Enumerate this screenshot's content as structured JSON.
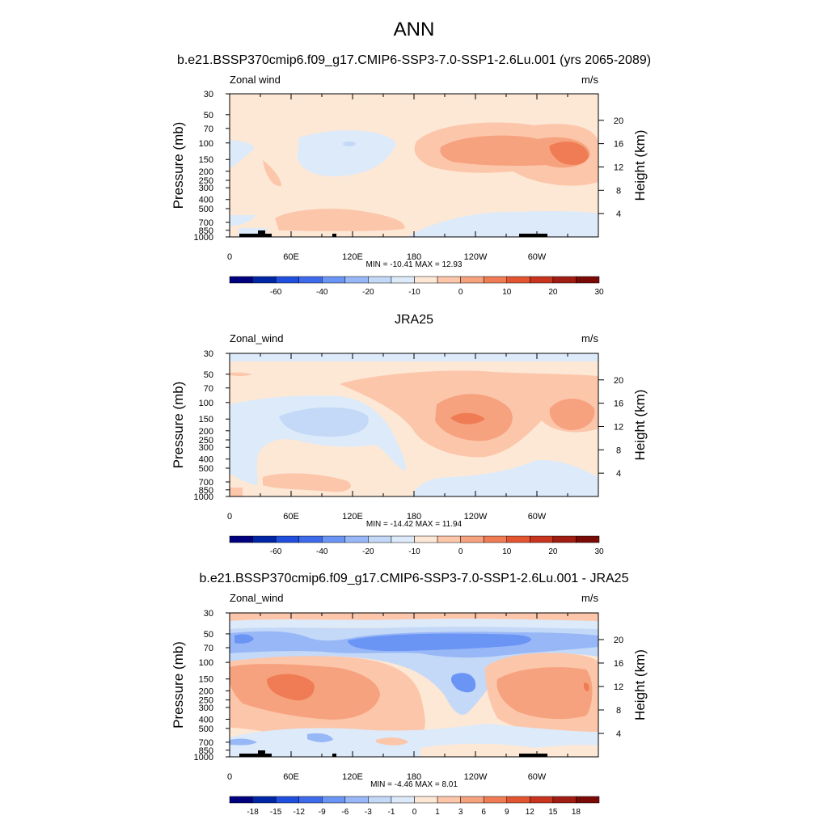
{
  "figure": {
    "title": "ANN",
    "subtitle": "b.e21.BSSP370cmip6.f09_g17.CMIP6-SSP3-7.0-SSP1-2.6Lu.001 (yrs 2065-2089)"
  },
  "chart_data": [
    {
      "type": "heatmap",
      "panel_title": "",
      "left_label": "Zonal wind",
      "right_label": "m/s",
      "xlabel": "",
      "ylabel": "Pressure (mb)",
      "ylabel_right": "Height (km)",
      "x_ticks": [
        "0",
        "60E",
        "120E",
        "180",
        "120W",
        "60W"
      ],
      "y_ticks": [
        "30",
        "50",
        "70",
        "100",
        "150",
        "200",
        "250",
        "300",
        "400",
        "500",
        "700",
        "850",
        "1000"
      ],
      "right_ticks": [
        "20",
        "16",
        "12",
        "8",
        "4"
      ],
      "stats": "MIN = -10.41  MAX =  12.93",
      "min": -10.41,
      "max": 12.93,
      "colorbar_labels": [
        "-60",
        "-40",
        "-20",
        "-10",
        "0",
        "10",
        "20",
        "30"
      ]
    },
    {
      "type": "heatmap",
      "panel_title": "JRA25",
      "left_label": "Zonal_wind",
      "right_label": "m/s",
      "xlabel": "",
      "ylabel": "Pressure (mb)",
      "ylabel_right": "Height (km)",
      "x_ticks": [
        "0",
        "60E",
        "120E",
        "180",
        "120W",
        "60W"
      ],
      "y_ticks": [
        "30",
        "50",
        "70",
        "100",
        "150",
        "200",
        "250",
        "300",
        "400",
        "500",
        "700",
        "850",
        "1000"
      ],
      "right_ticks": [
        "20",
        "16",
        "12",
        "8",
        "4"
      ],
      "stats": "MIN = -14.42  MAX =  11.94",
      "min": -14.42,
      "max": 11.94,
      "colorbar_labels": [
        "-60",
        "-40",
        "-20",
        "-10",
        "0",
        "10",
        "20",
        "30"
      ]
    },
    {
      "type": "heatmap",
      "panel_title": "b.e21.BSSP370cmip6.f09_g17.CMIP6-SSP3-7.0-SSP1-2.6Lu.001 - JRA25",
      "left_label": "Zonal_wind",
      "right_label": "m/s",
      "xlabel": "",
      "ylabel": "Pressure (mb)",
      "ylabel_right": "Height (km)",
      "x_ticks": [
        "0",
        "60E",
        "120E",
        "180",
        "120W",
        "60W"
      ],
      "y_ticks": [
        "30",
        "50",
        "70",
        "100",
        "150",
        "200",
        "250",
        "300",
        "400",
        "500",
        "700",
        "850",
        "1000"
      ],
      "right_ticks": [
        "20",
        "16",
        "12",
        "8",
        "4"
      ],
      "stats": "MIN =  -4.46  MAX =   8.01",
      "min": -4.46,
      "max": 8.01,
      "colorbar_labels": [
        "-18",
        "-15",
        "-12",
        "-9",
        "-6",
        "-3",
        "-1",
        "0",
        "1",
        "3",
        "6",
        "9",
        "12",
        "15",
        "18"
      ]
    }
  ],
  "colors": {
    "palette": [
      "#00007f",
      "#0026a8",
      "#1f4fdc",
      "#3d6bec",
      "#6b95f5",
      "#98b7f7",
      "#c4d9f7",
      "#dceafa",
      "#fde8d6",
      "#fcc6ab",
      "#f6a27e",
      "#ef7c54",
      "#e35530",
      "#c8341e",
      "#a11d12",
      "#7a0a06"
    ]
  }
}
